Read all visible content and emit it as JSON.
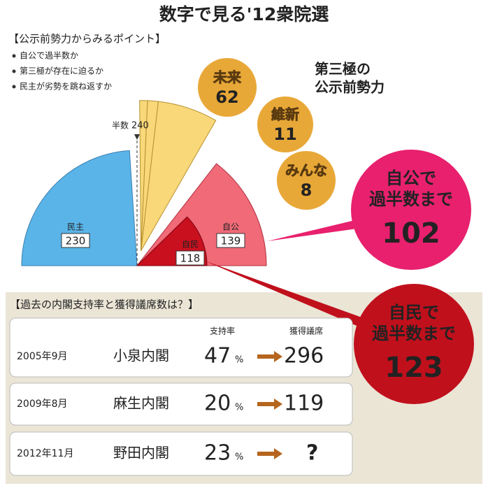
{
  "title": "数字で見る'12衆院選",
  "points": {
    "heading": "【公示前勢力からみるポイント】",
    "items": [
      "自公で過半数か",
      "第三極が存在に迫るか",
      "民主が劣勢を跳ね返すか"
    ]
  },
  "majority": {
    "label": "半数",
    "value": 240
  },
  "seats": [
    {
      "name": "民主",
      "value": 230,
      "color": "#5ab4e8"
    },
    {
      "name": "自公",
      "value": 139,
      "color": "#f06a78"
    },
    {
      "name": "自民",
      "value": 118,
      "color": "#c8101e"
    }
  ],
  "third_pole": {
    "label": [
      "第三極の",
      "公示前勢力"
    ],
    "color": "#f8d878",
    "bubble_color": "#e8a838",
    "parties": [
      {
        "name": "未来",
        "value": 62
      },
      {
        "name": "維新",
        "value": 11
      },
      {
        "name": "みんな",
        "value": 8
      }
    ]
  },
  "callouts": [
    {
      "label": [
        "自公で",
        "過半数まで"
      ],
      "value": 102,
      "color": "#e8206e"
    },
    {
      "label": [
        "自民で",
        "過半数まで"
      ],
      "value": 123,
      "color": "#c0101c"
    }
  ],
  "history": {
    "heading": "【過去の内閣支持率と獲得議席数は？】",
    "col_support": "支持率",
    "col_seats": "獲得議席",
    "unit": "%",
    "rows": [
      {
        "date": "2005年9月",
        "cabinet": "小泉内閣",
        "support": 47,
        "seats": 296
      },
      {
        "date": "2009年8月",
        "cabinet": "麻生内閣",
        "support": 20,
        "seats": 119
      },
      {
        "date": "2012年11月",
        "cabinet": "野田内閣",
        "support": 23,
        "seats": "?"
      }
    ]
  }
}
